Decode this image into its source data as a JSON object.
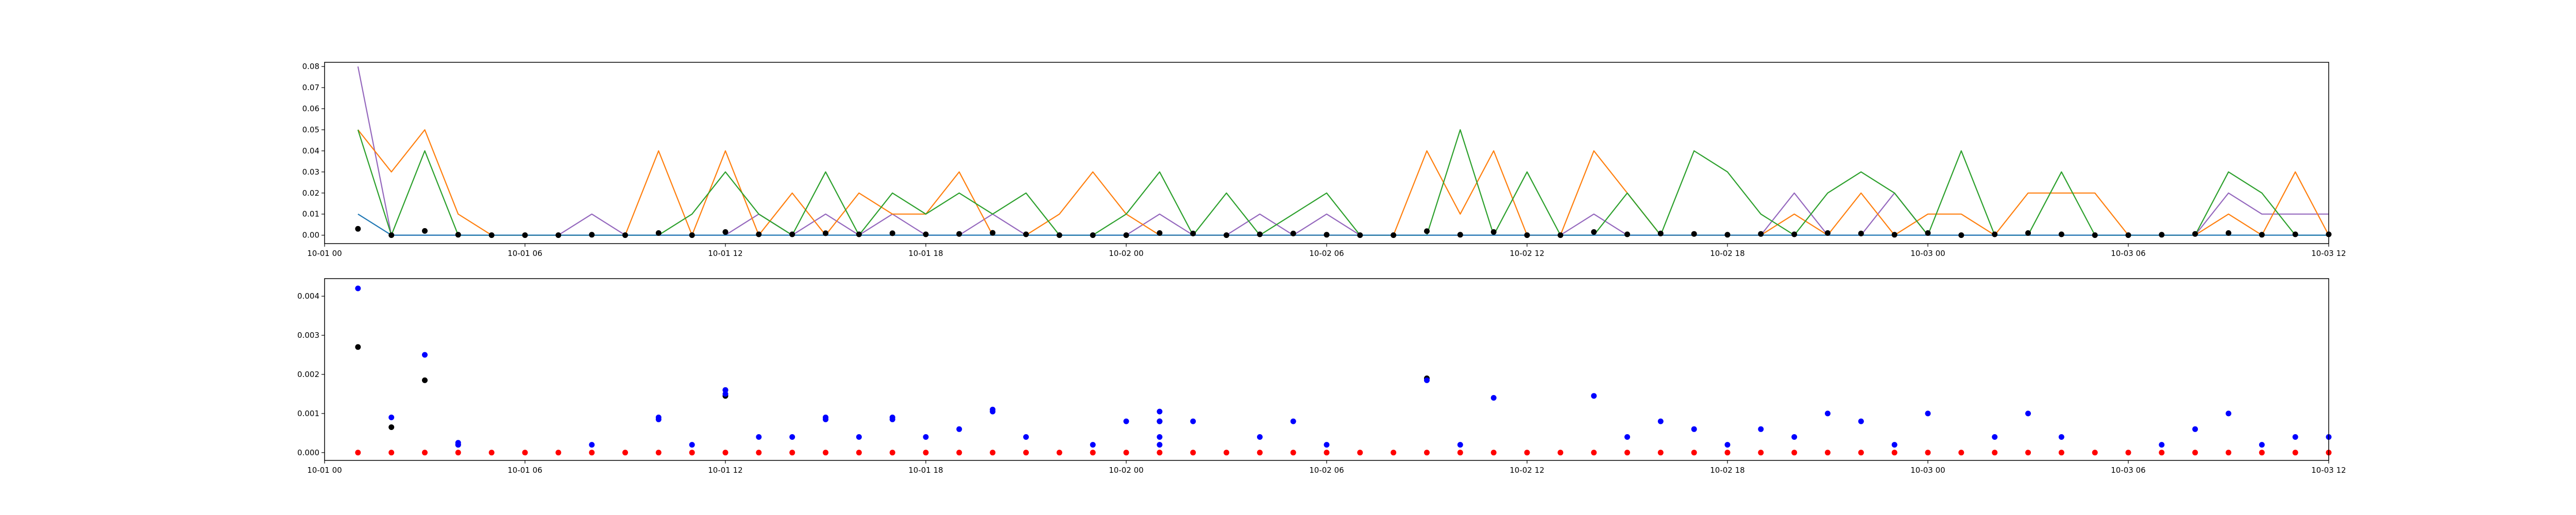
{
  "colors": {
    "purple": "#9467bd",
    "orange": "#ff7f0e",
    "green": "#2ca02c",
    "blue_line": "#1f77b4",
    "black": "#000000",
    "blue_dot": "#0000ff",
    "red_dot": "#ff0000"
  },
  "chart_data": [
    {
      "type": "line",
      "x_axis": "datetime",
      "xlim": [
        "2023-10-01 00:00",
        "2023-10-03 12:00"
      ],
      "x_ticks": [
        "2023-10-01 00:00",
        "2023-10-01 06:00",
        "2023-10-01 12:00",
        "2023-10-01 18:00",
        "2023-10-02 00:00",
        "2023-10-02 06:00",
        "2023-10-02 12:00",
        "2023-10-02 18:00",
        "2023-10-03 00:00",
        "2023-10-03 06:00",
        "2023-10-03 12:00"
      ],
      "x_tick_labels": [
        "10-01 00",
        "10-01 06",
        "10-01 12",
        "10-01 18",
        "10-02 00",
        "10-02 06",
        "10-02 12",
        "10-02 18",
        "10-03 00",
        "10-03 06",
        "10-03 12"
      ],
      "ylim": [
        -0.004,
        0.082
      ],
      "y_ticks": [
        0.0,
        0.01,
        0.02,
        0.03,
        0.04,
        0.05,
        0.06,
        0.07,
        0.08
      ],
      "y_tick_labels": [
        "0.00",
        "0.01",
        "0.02",
        "0.03",
        "0.04",
        "0.05",
        "0.06",
        "0.07",
        "0.08"
      ],
      "x": [
        "2023-10-01 01:00",
        "2023-10-01 02:00",
        "2023-10-01 03:00",
        "2023-10-01 04:00",
        "2023-10-01 05:00",
        "2023-10-01 06:00",
        "2023-10-01 07:00",
        "2023-10-01 08:00",
        "2023-10-01 09:00",
        "2023-10-01 10:00",
        "2023-10-01 11:00",
        "2023-10-01 12:00",
        "2023-10-01 13:00",
        "2023-10-01 14:00",
        "2023-10-01 15:00",
        "2023-10-01 16:00",
        "2023-10-01 17:00",
        "2023-10-01 18:00",
        "2023-10-01 19:00",
        "2023-10-01 20:00",
        "2023-10-01 21:00",
        "2023-10-01 22:00",
        "2023-10-01 23:00",
        "2023-10-02 00:00",
        "2023-10-02 01:00",
        "2023-10-02 02:00",
        "2023-10-02 03:00",
        "2023-10-02 04:00",
        "2023-10-02 05:00",
        "2023-10-02 06:00",
        "2023-10-02 07:00",
        "2023-10-02 08:00",
        "2023-10-02 09:00",
        "2023-10-02 10:00",
        "2023-10-02 11:00",
        "2023-10-02 12:00",
        "2023-10-02 13:00",
        "2023-10-02 14:00",
        "2023-10-02 15:00",
        "2023-10-02 16:00",
        "2023-10-02 17:00",
        "2023-10-02 18:00",
        "2023-10-02 19:00",
        "2023-10-02 20:00",
        "2023-10-02 21:00",
        "2023-10-02 22:00",
        "2023-10-02 23:00",
        "2023-10-03 00:00",
        "2023-10-03 01:00",
        "2023-10-03 02:00",
        "2023-10-03 03:00",
        "2023-10-03 04:00",
        "2023-10-03 05:00",
        "2023-10-03 06:00",
        "2023-10-03 07:00",
        "2023-10-03 08:00",
        "2023-10-03 09:00",
        "2023-10-03 10:00",
        "2023-10-03 11:00",
        "2023-10-03 12:00"
      ],
      "series": [
        {
          "color_key": "purple",
          "kind": "line",
          "values": [
            0.08,
            0,
            0,
            0,
            0,
            0,
            0,
            0.01,
            0,
            0,
            0,
            0,
            0.01,
            0,
            0.01,
            0,
            0.01,
            0,
            0,
            0.01,
            0,
            0,
            0,
            0,
            0.01,
            0,
            0,
            0.01,
            0,
            0.01,
            0,
            0,
            0,
            0,
            0,
            0,
            0,
            0.01,
            0,
            0,
            0,
            0,
            0,
            0.02,
            0,
            0,
            0.02,
            0,
            0,
            0,
            0,
            0,
            0,
            0,
            0,
            0,
            0.02,
            0.01,
            0.01,
            0.01
          ]
        },
        {
          "color_key": "orange",
          "kind": "line",
          "values": [
            0.05,
            0.03,
            0.05,
            0.01,
            0,
            0,
            0,
            0,
            0,
            0.04,
            0,
            0.04,
            0,
            0.02,
            0,
            0.02,
            0.01,
            0.01,
            0.03,
            0,
            0,
            0.01,
            0.03,
            0.01,
            0,
            0,
            0,
            0,
            0,
            0,
            0,
            0,
            0.04,
            0.01,
            0.04,
            0,
            0,
            0.04,
            0.02,
            0,
            0,
            0,
            0,
            0.01,
            0,
            0.02,
            0,
            0.01,
            0.01,
            0,
            0.02,
            0.02,
            0.02,
            0,
            0,
            0,
            0.01,
            0,
            0.03,
            0
          ]
        },
        {
          "color_key": "green",
          "kind": "line",
          "values": [
            0.05,
            0,
            0.04,
            0,
            0,
            0,
            0,
            0,
            0,
            0,
            0.01,
            0.03,
            0.01,
            0,
            0.03,
            0,
            0.02,
            0.01,
            0.02,
            0.01,
            0.02,
            0,
            0,
            0.01,
            0.03,
            0,
            0.02,
            0,
            0.01,
            0.02,
            0,
            0,
            0,
            0.05,
            0,
            0.03,
            0,
            0,
            0.02,
            0,
            0.04,
            0.03,
            0.01,
            0,
            0.02,
            0.03,
            0.02,
            0,
            0.04,
            0,
            0,
            0.03,
            0,
            0,
            0,
            0,
            0.03,
            0.02,
            0,
            0
          ]
        },
        {
          "color_key": "blue_line",
          "kind": "line",
          "values": [
            0.01,
            0,
            0,
            0,
            0,
            0,
            0,
            0,
            0,
            0,
            0,
            0,
            0,
            0,
            0,
            0,
            0,
            0,
            0,
            0,
            0,
            0,
            0,
            0,
            0,
            0,
            0,
            0,
            0,
            0,
            0,
            0,
            0,
            0,
            0,
            0,
            0,
            0,
            0,
            0,
            0,
            0,
            0,
            0,
            0,
            0,
            0,
            0,
            0,
            0,
            0,
            0,
            0,
            0,
            0,
            0,
            0,
            0,
            0,
            0
          ]
        },
        {
          "color_key": "black",
          "kind": "scatter",
          "values": [
            0.003,
            0,
            0.002,
            0.0002,
            0,
            0,
            0,
            0.0002,
            0,
            0.001,
            0,
            0.0015,
            0.0004,
            0.0004,
            0.0009,
            0.0004,
            0.0009,
            0.0004,
            0.0006,
            0.0011,
            0.0004,
            0,
            0,
            0,
            0.001,
            0.0008,
            0,
            0.0004,
            0.0008,
            0.0002,
            0,
            0,
            0.0019,
            0.0002,
            0.0015,
            0,
            0,
            0.0015,
            0.0004,
            0.0008,
            0.0006,
            0.0002,
            0.0006,
            0.0004,
            0.001,
            0.0008,
            0.0002,
            0.001,
            0,
            0.0004,
            0.001,
            0.0004,
            0,
            0,
            0.0002,
            0.0006,
            0.001,
            0.0002,
            0.0004,
            0.0004
          ]
        }
      ]
    },
    {
      "type": "scatter",
      "x_axis": "datetime",
      "xlim": [
        "2023-10-01 00:00",
        "2023-10-03 12:00"
      ],
      "x_ticks": [
        "2023-10-01 00:00",
        "2023-10-01 06:00",
        "2023-10-01 12:00",
        "2023-10-01 18:00",
        "2023-10-02 00:00",
        "2023-10-02 06:00",
        "2023-10-02 12:00",
        "2023-10-02 18:00",
        "2023-10-03 00:00",
        "2023-10-03 06:00",
        "2023-10-03 12:00"
      ],
      "x_tick_labels": [
        "10-01 00",
        "10-01 06",
        "10-01 12",
        "10-01 18",
        "10-02 00",
        "10-02 06",
        "10-02 12",
        "10-02 18",
        "10-03 00",
        "10-03 06",
        "10-03 12"
      ],
      "ylim": [
        -0.0002,
        0.00445
      ],
      "y_ticks": [
        0.0,
        0.001,
        0.002,
        0.003,
        0.004
      ],
      "y_tick_labels": [
        "0.000",
        "0.001",
        "0.002",
        "0.003",
        "0.004"
      ],
      "series": [
        {
          "color_key": "red_dot",
          "kind": "scatter",
          "x": [
            "2023-10-01 01:00",
            "2023-10-01 02:00",
            "2023-10-01 03:00",
            "2023-10-01 04:00",
            "2023-10-01 05:00",
            "2023-10-01 06:00",
            "2023-10-01 07:00",
            "2023-10-01 08:00",
            "2023-10-01 09:00",
            "2023-10-01 10:00",
            "2023-10-01 11:00",
            "2023-10-01 12:00",
            "2023-10-01 13:00",
            "2023-10-01 14:00",
            "2023-10-01 15:00",
            "2023-10-01 16:00",
            "2023-10-01 17:00",
            "2023-10-01 18:00",
            "2023-10-01 19:00",
            "2023-10-01 20:00",
            "2023-10-01 21:00",
            "2023-10-01 22:00",
            "2023-10-01 23:00",
            "2023-10-02 00:00",
            "2023-10-02 01:00",
            "2023-10-02 02:00",
            "2023-10-02 03:00",
            "2023-10-02 04:00",
            "2023-10-02 05:00",
            "2023-10-02 06:00",
            "2023-10-02 07:00",
            "2023-10-02 08:00",
            "2023-10-02 09:00",
            "2023-10-02 10:00",
            "2023-10-02 11:00",
            "2023-10-02 12:00",
            "2023-10-02 13:00",
            "2023-10-02 14:00",
            "2023-10-02 15:00",
            "2023-10-02 16:00",
            "2023-10-02 17:00",
            "2023-10-02 18:00",
            "2023-10-02 19:00",
            "2023-10-02 20:00",
            "2023-10-02 21:00",
            "2023-10-02 22:00",
            "2023-10-02 23:00",
            "2023-10-03 00:00",
            "2023-10-03 01:00",
            "2023-10-03 02:00",
            "2023-10-03 03:00",
            "2023-10-03 04:00",
            "2023-10-03 05:00",
            "2023-10-03 06:00",
            "2023-10-03 07:00",
            "2023-10-03 08:00",
            "2023-10-03 09:00",
            "2023-10-03 10:00",
            "2023-10-03 11:00",
            "2023-10-03 12:00"
          ],
          "values": [
            0,
            0,
            0,
            0,
            0,
            0,
            0,
            0,
            0,
            0,
            0,
            0,
            0,
            0,
            0,
            0,
            0,
            0,
            0,
            0,
            0,
            0,
            0,
            0,
            0,
            0,
            0,
            0,
            0,
            0,
            0,
            0,
            0,
            0,
            0,
            0,
            0,
            0,
            0,
            0,
            0,
            0,
            0,
            0,
            0,
            0,
            0,
            0,
            0,
            0,
            0,
            0,
            0,
            0,
            0,
            0,
            0,
            0,
            0,
            0
          ]
        },
        {
          "color_key": "black",
          "kind": "scatter",
          "x": [
            "2023-10-01 01:00",
            "2023-10-01 02:00",
            "2023-10-01 03:00",
            "2023-10-01 04:00",
            "2023-10-01 12:00",
            "2023-10-01 12:00",
            "2023-10-02 01:00",
            "2023-10-02 09:00"
          ],
          "values": [
            0.0027,
            0.00065,
            0.00185,
            0.0002,
            0.00145,
            0.0016,
            0.0008,
            0.0019
          ]
        },
        {
          "color_key": "blue_dot",
          "kind": "scatter",
          "x": [
            "2023-10-01 01:00",
            "2023-10-01 02:00",
            "2023-10-01 03:00",
            "2023-10-01 04:00",
            "2023-10-01 04:00",
            "2023-10-01 08:00",
            "2023-10-01 10:00",
            "2023-10-01 10:00",
            "2023-10-01 11:00",
            "2023-10-01 12:00",
            "2023-10-01 12:00",
            "2023-10-01 13:00",
            "2023-10-01 14:00",
            "2023-10-01 15:00",
            "2023-10-01 15:00",
            "2023-10-01 16:00",
            "2023-10-01 17:00",
            "2023-10-01 17:00",
            "2023-10-01 18:00",
            "2023-10-01 19:00",
            "2023-10-01 20:00",
            "2023-10-01 20:00",
            "2023-10-01 21:00",
            "2023-10-01 23:00",
            "2023-10-02 00:00",
            "2023-10-02 01:00",
            "2023-10-02 01:00",
            "2023-10-02 01:00",
            "2023-10-02 01:00",
            "2023-10-02 02:00",
            "2023-10-02 04:00",
            "2023-10-02 05:00",
            "2023-10-02 06:00",
            "2023-10-02 09:00",
            "2023-10-02 10:00",
            "2023-10-02 11:00",
            "2023-10-02 14:00",
            "2023-10-02 15:00",
            "2023-10-02 16:00",
            "2023-10-02 17:00",
            "2023-10-02 18:00",
            "2023-10-02 19:00",
            "2023-10-02 20:00",
            "2023-10-02 21:00",
            "2023-10-02 22:00",
            "2023-10-02 23:00",
            "2023-10-03 00:00",
            "2023-10-03 02:00",
            "2023-10-03 03:00",
            "2023-10-03 04:00",
            "2023-10-03 07:00",
            "2023-10-03 08:00",
            "2023-10-03 09:00",
            "2023-10-03 10:00",
            "2023-10-03 11:00",
            "2023-10-03 12:00"
          ],
          "values": [
            0.0042,
            0.0009,
            0.0025,
            0.0002,
            0.00025,
            0.0002,
            0.00085,
            0.0009,
            0.0002,
            0.0015,
            0.0016,
            0.0004,
            0.0004,
            0.00085,
            0.0009,
            0.0004,
            0.00085,
            0.0009,
            0.0004,
            0.0006,
            0.00105,
            0.0011,
            0.0004,
            0.0002,
            0.0008,
            0.0002,
            0.0004,
            0.0008,
            0.00105,
            0.0008,
            0.0004,
            0.0008,
            0.0002,
            0.00185,
            0.0002,
            0.0014,
            0.00145,
            0.0004,
            0.0008,
            0.0006,
            0.0002,
            0.0006,
            0.0004,
            0.001,
            0.0008,
            0.0002,
            0.001,
            0.0004,
            0.001,
            0.0004,
            0.0002,
            0.0006,
            0.001,
            0.0002,
            0.0004,
            0.0004
          ]
        }
      ]
    }
  ]
}
